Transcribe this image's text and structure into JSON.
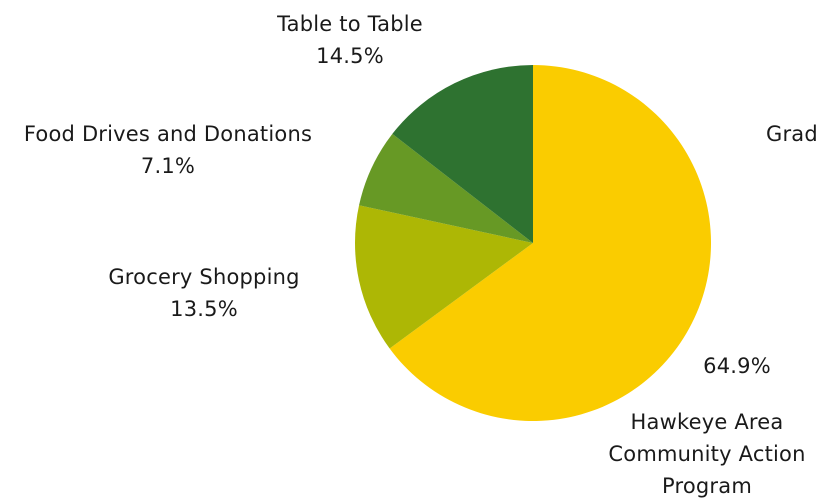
{
  "chart_data": {
    "type": "pie",
    "title": "",
    "slices": [
      {
        "label": "Hawkeye Area Community Action Program",
        "percent_label": "64.9%",
        "value": 64.9,
        "color": "#FACC00"
      },
      {
        "label": "Grocery Shopping",
        "percent_label": "13.5%",
        "value": 13.5,
        "color": "#ADB705"
      },
      {
        "label": "Food Drives and Donations",
        "percent_label": "7.1%",
        "value": 7.1,
        "color": "#679925"
      },
      {
        "label": "Table to Table",
        "percent_label": "14.5%",
        "value": 14.5,
        "color": "#2E7230"
      }
    ],
    "clipped_label": "Grad",
    "start_angle": "12 o'clock",
    "direction": "clockwise",
    "legend": "none"
  }
}
